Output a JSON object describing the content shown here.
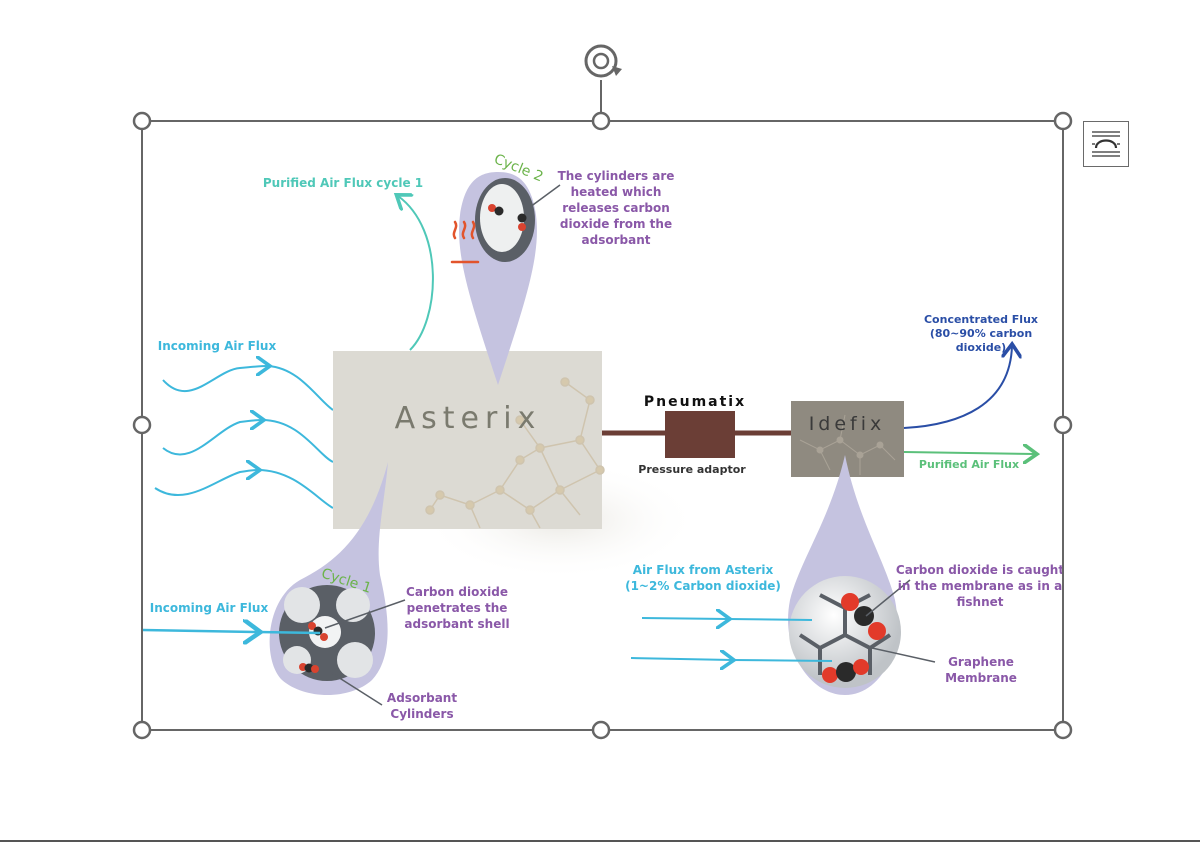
{
  "diagram": {
    "labels": {
      "purified_cycle1": "Purified Air Flux cycle 1",
      "incoming_top": "Incoming Air Flux",
      "incoming_bottom": "Incoming Air Flux",
      "cycle2": "Cycle 2",
      "cycle1": "Cycle 1",
      "heated_1": "The cylinders are",
      "heated_2": "heated which",
      "heated_3": "releases carbon",
      "heated_4": "dioxide from the",
      "heated_5": "adsorbant",
      "asterix": "Asterix",
      "pneumatix": "Pneumatix",
      "pressure_adaptor": "Pressure adaptor",
      "idefix": "Idefix",
      "concentrated_1": "Concentrated Flux",
      "concentrated_2": "(80~90% carbon",
      "concentrated_3": "dioxide)",
      "purified_flux": "Purified Air Flux",
      "penetrates_1": "Carbon dioxide",
      "penetrates_2": "penetrates the",
      "penetrates_3": "adsorbant shell",
      "adsorbant_1": "Adsorbant",
      "adsorbant_2": "Cylinders",
      "from_asterix_1": "Air Flux from Asterix",
      "from_asterix_2": "(1~2% Carbon dioxide)",
      "caught_1": "Carbon dioxide is caught",
      "caught_2": "in the membrane as in a",
      "caught_3": "fishnet",
      "graphene_1": "Graphene",
      "graphene_2": "Membrane"
    },
    "colors": {
      "teal": "#4fc8b8",
      "cyan": "#3db8dc",
      "purple": "#8a58a8",
      "navy": "#2a4ea6",
      "green": "#5bc07a",
      "pin": "#c5c3e0",
      "box": "#dcdad3",
      "connector": "#6b3e36"
    }
  },
  "selection": {
    "handle_color": "#666666",
    "rotate_icon": "rotate-icon",
    "layout_icon": "layout-options-icon"
  }
}
